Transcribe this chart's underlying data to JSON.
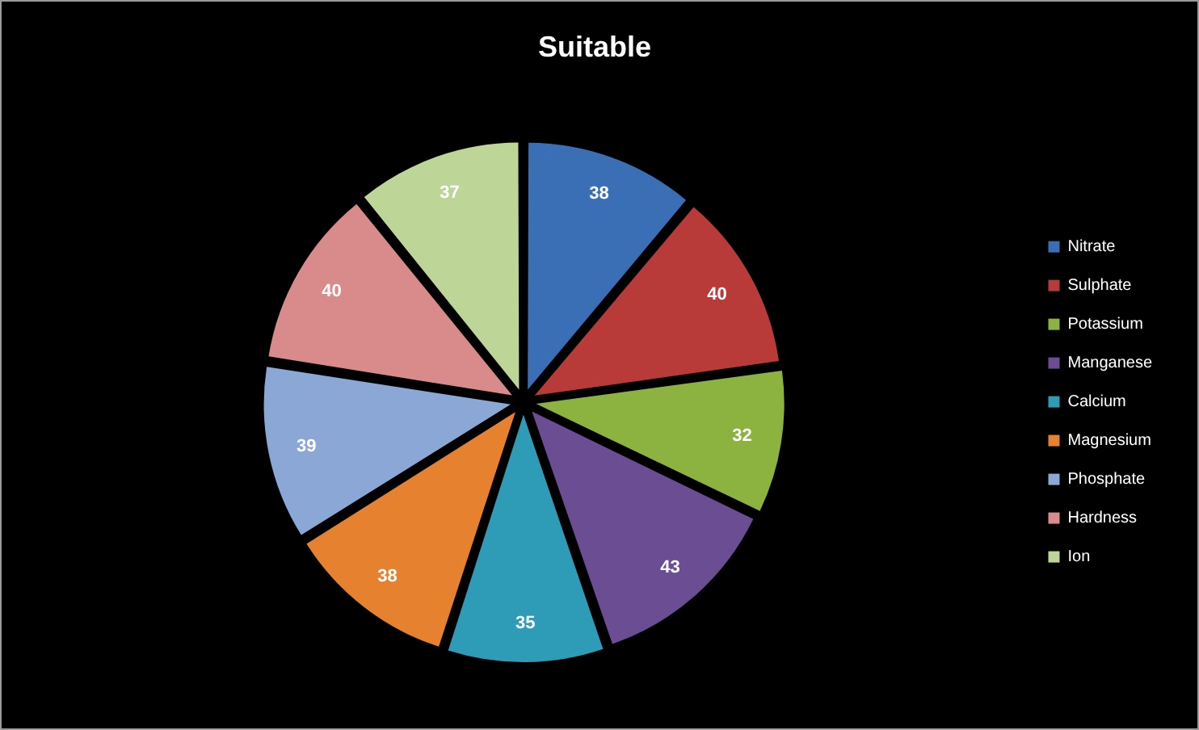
{
  "chart_data": {
    "type": "pie",
    "title": "Suitable",
    "categories": [
      "Nitrate",
      "Sulphate",
      "Potassium",
      "Manganese",
      "Calcium",
      "Magnesium",
      "Phosphate",
      "Hardness",
      "Ion"
    ],
    "values": [
      38,
      40,
      32,
      43,
      35,
      38,
      39,
      40,
      37
    ],
    "colors": [
      "#3a6fb6",
      "#b93b39",
      "#8cb33f",
      "#6b4d94",
      "#2e9cb6",
      "#e5812f",
      "#8aa7d6",
      "#d88b8a",
      "#bdd597"
    ],
    "data_labels": true,
    "legend": "right"
  }
}
